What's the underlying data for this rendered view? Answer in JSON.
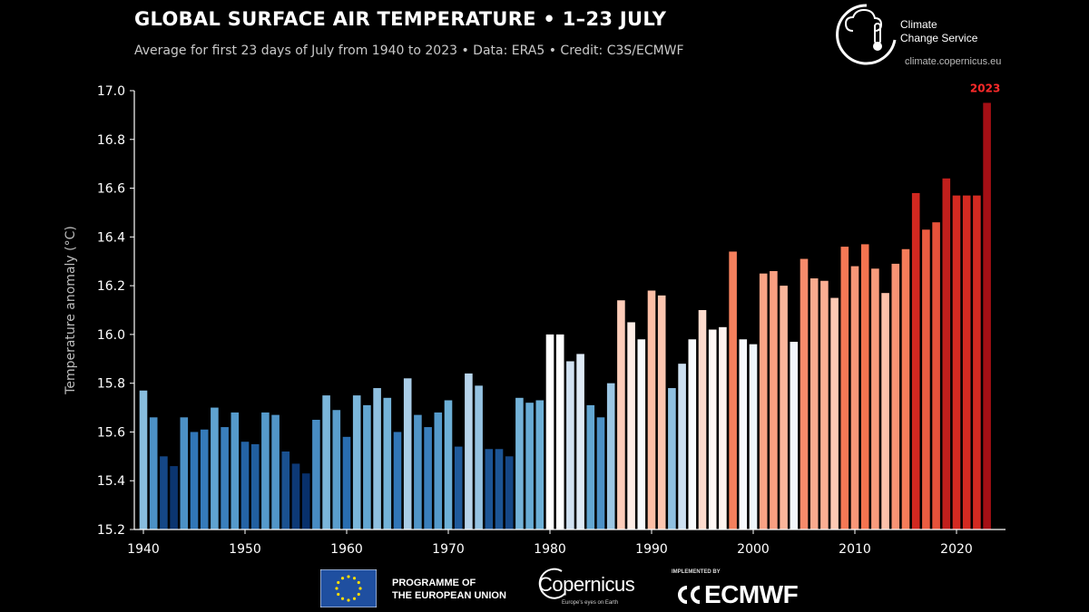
{
  "header": {
    "title": "GLOBAL SURFACE AIR TEMPERATURE • 1–23 JULY",
    "subtitle": "Average for first 23 days of July from 1940 to 2023  •  Data: ERA5  •  Credit: C3S/ECMWF"
  },
  "logo": {
    "name_line1": "Climate",
    "name_line2": "Change Service",
    "url": "climate.copernicus.eu"
  },
  "footer": {
    "eu_line1": "PROGRAMME OF",
    "eu_line2": "THE EUROPEAN UNION",
    "copernicus_name": "Copernicus",
    "copernicus_tagline": "Europe's eyes on Earth",
    "ecmwf_implemented": "IMPLEMENTED BY",
    "ecmwf_name": "ECMWF"
  },
  "chart_data": {
    "type": "bar",
    "title": "GLOBAL SURFACE AIR TEMPERATURE • 1–23 JULY",
    "ylabel": "Temperature anomaly (°C)",
    "xlabel": "",
    "ylim": [
      15.2,
      17.0
    ],
    "xlim": [
      1940,
      2023
    ],
    "yticks": [
      "15.2",
      "15.4",
      "15.6",
      "15.8",
      "16.0",
      "16.2",
      "16.4",
      "16.6",
      "16.8",
      "17.0"
    ],
    "xticks": [
      1940,
      1950,
      1960,
      1970,
      1980,
      1990,
      2000,
      2010,
      2020
    ],
    "highlight_label": "2023",
    "highlight_color": "#ff2a2a",
    "color_scale": [
      "#08306b",
      "#2b70b4",
      "#6aaed6",
      "#c6dbef",
      "#ffffff",
      "#fcbba1",
      "#f4724e",
      "#d52b21",
      "#a50f15"
    ],
    "years": [
      1940,
      1941,
      1942,
      1943,
      1944,
      1945,
      1946,
      1947,
      1948,
      1949,
      1950,
      1951,
      1952,
      1953,
      1954,
      1955,
      1956,
      1957,
      1958,
      1959,
      1960,
      1961,
      1962,
      1963,
      1964,
      1965,
      1966,
      1967,
      1968,
      1969,
      1970,
      1971,
      1972,
      1973,
      1974,
      1975,
      1976,
      1977,
      1978,
      1979,
      1980,
      1981,
      1982,
      1983,
      1984,
      1985,
      1986,
      1987,
      1988,
      1989,
      1990,
      1991,
      1992,
      1993,
      1994,
      1995,
      1996,
      1997,
      1998,
      1999,
      2000,
      2001,
      2002,
      2003,
      2004,
      2005,
      2006,
      2007,
      2008,
      2009,
      2010,
      2011,
      2012,
      2013,
      2014,
      2015,
      2016,
      2017,
      2018,
      2019,
      2020,
      2021,
      2022,
      2023
    ],
    "values": [
      15.77,
      15.66,
      15.5,
      15.46,
      15.66,
      15.6,
      15.61,
      15.7,
      15.62,
      15.68,
      15.56,
      15.55,
      15.68,
      15.67,
      15.52,
      15.47,
      15.43,
      15.65,
      15.75,
      15.69,
      15.58,
      15.75,
      15.71,
      15.78,
      15.74,
      15.6,
      15.82,
      15.67,
      15.62,
      15.68,
      15.73,
      15.54,
      15.84,
      15.79,
      15.53,
      15.53,
      15.5,
      15.74,
      15.72,
      15.73,
      16.0,
      16.0,
      15.89,
      15.92,
      15.71,
      15.66,
      15.8,
      16.14,
      16.05,
      15.98,
      16.18,
      16.16,
      15.78,
      15.88,
      15.98,
      16.1,
      16.02,
      16.03,
      16.34,
      15.98,
      15.96,
      16.25,
      16.26,
      16.2,
      15.97,
      16.31,
      16.23,
      16.22,
      16.15,
      16.36,
      16.28,
      16.37,
      16.27,
      16.17,
      16.29,
      16.35,
      16.58,
      16.43,
      16.46,
      16.64,
      16.57,
      16.57,
      16.57,
      16.95
    ]
  }
}
